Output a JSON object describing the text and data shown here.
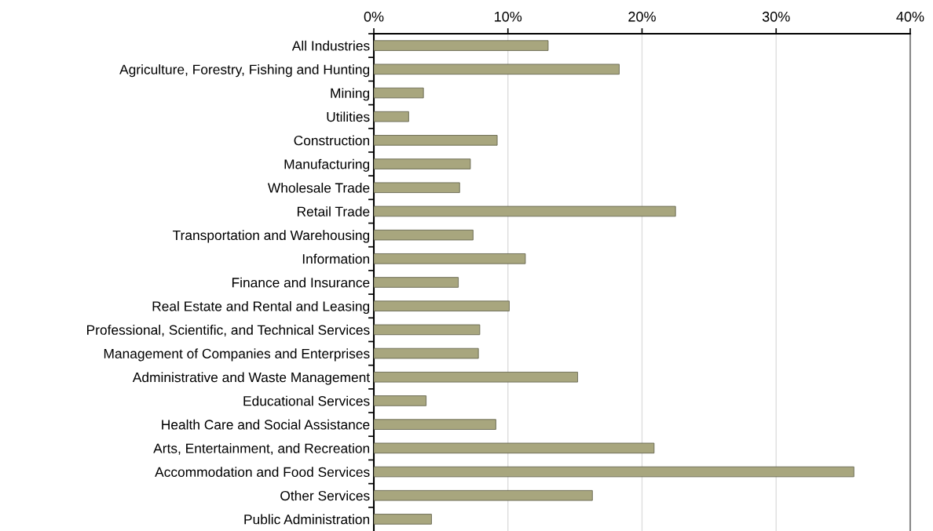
{
  "chart_data": {
    "type": "bar",
    "orientation": "horizontal",
    "categories": [
      "All Industries",
      "Agriculture, Forestry, Fishing and Hunting",
      "Mining",
      "Utilities",
      "Construction",
      "Manufacturing",
      "Wholesale Trade",
      "Retail Trade",
      "Transportation and Warehousing",
      "Information",
      "Finance and Insurance",
      "Real Estate and Rental and Leasing",
      "Professional, Scientific, and Technical Services",
      "Management of Companies and Enterprises",
      "Administrative and Waste Management",
      "Educational Services",
      "Health Care and Social Assistance",
      "Arts, Entertainment, and Recreation",
      "Accommodation and Food Services",
      "Other Services",
      "Public Administration"
    ],
    "values": [
      0.13,
      0.183,
      0.037,
      0.026,
      0.092,
      0.072,
      0.064,
      0.225,
      0.074,
      0.113,
      0.063,
      0.101,
      0.079,
      0.078,
      0.152,
      0.039,
      0.091,
      0.209,
      0.358,
      0.163,
      0.043
    ],
    "color": "#a8a67e",
    "xlim": [
      0,
      0.4
    ],
    "xticks": [
      {
        "value": 0,
        "label": "0%"
      },
      {
        "value": 0.1,
        "label": "10%"
      },
      {
        "value": 0.2,
        "label": "20%"
      },
      {
        "value": 0.3,
        "label": "30%"
      },
      {
        "value": 0.4,
        "label": "40%"
      }
    ],
    "grid": "x",
    "legend": false
  }
}
